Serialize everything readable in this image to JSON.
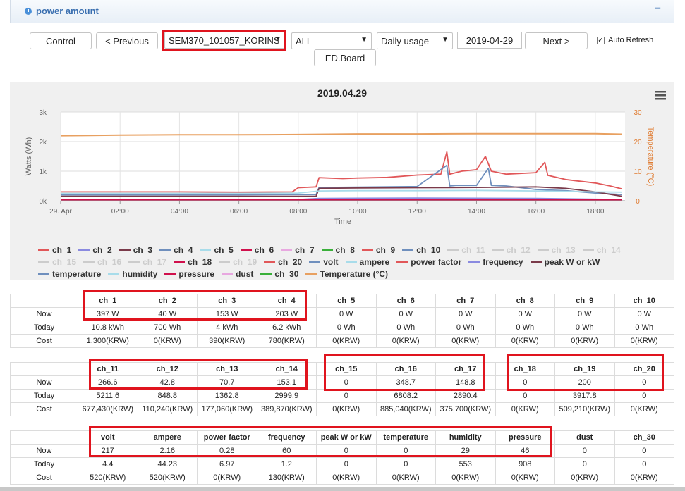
{
  "panel": {
    "title": "power amount",
    "collapse": "−"
  },
  "toolbar": {
    "control": "Control",
    "previous": "< Previous",
    "device": "SEM370_101057_KORINS",
    "channel": "ALL",
    "mode": "Daily usage",
    "date": "2019-04-29",
    "next": "Next >",
    "auto_refresh": "Auto Refresh",
    "edboard": "ED.Board"
  },
  "icons": {
    "menu": "hamburger-menu-icon",
    "check": "checkbox-check-icon",
    "arrow": "dropdown-arrow-icon"
  },
  "colors": {
    "accent": "#3a6fb0",
    "highlight": "#e0141e"
  },
  "chart_data": {
    "type": "line",
    "title": "2019.04.29",
    "xlabel": "Time",
    "ylabel": "Watts (Wh)",
    "y2label": "Temperature (°C)",
    "x_ticks": [
      "29. Apr",
      "02:00",
      "04:00",
      "06:00",
      "08:00",
      "10:00",
      "12:00",
      "14:00",
      "16:00",
      "18:00"
    ],
    "y_ticks": [
      "0k",
      "1k",
      "2k",
      "3k"
    ],
    "y2_ticks": [
      "0",
      "10",
      "20",
      "30"
    ],
    "ylim": [
      0,
      3000
    ],
    "y2lim": [
      0,
      30
    ],
    "xlim_hours": [
      0,
      19
    ],
    "series": [
      {
        "name": "Temperature (°C)",
        "color": "#e8a060",
        "axis": "y2",
        "x": [
          0,
          2,
          4,
          6,
          8,
          10,
          12,
          14,
          16,
          18,
          18.9
        ],
        "y": [
          22.0,
          22.2,
          22.3,
          22.3,
          22.4,
          22.6,
          22.6,
          22.7,
          22.7,
          22.7,
          22.5
        ]
      },
      {
        "name": "ch_1",
        "color": "#e15759",
        "axis": "y1",
        "x": [
          0,
          2,
          4,
          6,
          7.8,
          8.0,
          8.6,
          8.7,
          9.5,
          10,
          11,
          12,
          12.8,
          13.0,
          13.1,
          13.5,
          14,
          14.3,
          14.5,
          15,
          16,
          16.3,
          16.4,
          17,
          18,
          18.5,
          18.9
        ],
        "y": [
          300,
          300,
          300,
          290,
          300,
          440,
          470,
          780,
          750,
          770,
          790,
          870,
          900,
          1650,
          900,
          1000,
          1050,
          1500,
          1000,
          900,
          950,
          1300,
          860,
          720,
          600,
          500,
          400
        ]
      },
      {
        "name": "ch_4",
        "color": "#6f8fbd",
        "axis": "y1",
        "x": [
          0,
          2,
          4,
          6,
          8,
          8.6,
          8.7,
          10,
          12,
          13.0,
          13.1,
          13.3,
          14,
          14.4,
          14.5,
          15,
          16,
          17,
          18,
          18.9
        ],
        "y": [
          200,
          200,
          200,
          200,
          210,
          210,
          450,
          460,
          480,
          1200,
          500,
          520,
          520,
          1100,
          520,
          500,
          380,
          340,
          260,
          210
        ]
      },
      {
        "name": "ch_3",
        "color": "#7a3a4a",
        "axis": "y1",
        "x": [
          0,
          2,
          4,
          6,
          8,
          8.6,
          8.7,
          10,
          12,
          14,
          16,
          17,
          18,
          18.9
        ],
        "y": [
          150,
          150,
          150,
          150,
          150,
          150,
          420,
          430,
          440,
          450,
          470,
          420,
          300,
          150
        ]
      },
      {
        "name": "humidity",
        "color": "#a8dcea",
        "axis": "y1",
        "x": [
          0,
          2,
          4,
          6,
          8,
          8.7,
          10,
          12,
          14,
          16,
          18,
          18.9
        ],
        "y": [
          250,
          250,
          250,
          250,
          260,
          330,
          340,
          340,
          350,
          330,
          300,
          290
        ]
      },
      {
        "name": "ch_2",
        "color": "#8a8ae0",
        "axis": "y1",
        "x": [
          0,
          4,
          8,
          8.7,
          12,
          16,
          18.9
        ],
        "y": [
          40,
          40,
          40,
          80,
          90,
          80,
          40
        ]
      },
      {
        "name": "pressure",
        "color": "#d0104c",
        "axis": "y1",
        "x": [
          0,
          4,
          8,
          12,
          16,
          18.9
        ],
        "y": [
          30,
          30,
          30,
          30,
          30,
          30
        ]
      }
    ]
  },
  "legend": [
    {
      "name": "ch_1",
      "color": "#e15759",
      "dim": false
    },
    {
      "name": "ch_2",
      "color": "#8a8ae0",
      "dim": false
    },
    {
      "name": "ch_3",
      "color": "#7a3a4a",
      "dim": false
    },
    {
      "name": "ch_4",
      "color": "#6f8fbd",
      "dim": false
    },
    {
      "name": "ch_5",
      "color": "#a8dcea",
      "dim": false
    },
    {
      "name": "ch_6",
      "color": "#d0104c",
      "dim": false
    },
    {
      "name": "ch_7",
      "color": "#e8a8e0",
      "dim": false
    },
    {
      "name": "ch_8",
      "color": "#3ab03a",
      "dim": false
    },
    {
      "name": "ch_9",
      "color": "#e15759",
      "dim": false
    },
    {
      "name": "ch_10",
      "color": "#6f8fbd",
      "dim": false
    },
    {
      "name": "ch_11",
      "color": "#cccccc",
      "dim": true
    },
    {
      "name": "ch_12",
      "color": "#cccccc",
      "dim": true
    },
    {
      "name": "ch_13",
      "color": "#cccccc",
      "dim": true
    },
    {
      "name": "ch_14",
      "color": "#cccccc",
      "dim": true
    },
    {
      "name": "ch_15",
      "color": "#cccccc",
      "dim": true
    },
    {
      "name": "ch_16",
      "color": "#cccccc",
      "dim": true
    },
    {
      "name": "ch_17",
      "color": "#cccccc",
      "dim": true
    },
    {
      "name": "ch_18",
      "color": "#d0104c",
      "dim": false
    },
    {
      "name": "ch_19",
      "color": "#cccccc",
      "dim": true
    },
    {
      "name": "ch_20",
      "color": "#e15759",
      "dim": false
    },
    {
      "name": "volt",
      "color": "#6f8fbd",
      "dim": false
    },
    {
      "name": "ampere",
      "color": "#a8dcea",
      "dim": false
    },
    {
      "name": "power factor",
      "color": "#e15759",
      "dim": false
    },
    {
      "name": "frequency",
      "color": "#8a8ae0",
      "dim": false
    },
    {
      "name": "peak W or kW",
      "color": "#7a3a4a",
      "dim": false
    },
    {
      "name": "temperature",
      "color": "#6f8fbd",
      "dim": false
    },
    {
      "name": "humidity",
      "color": "#a8dcea",
      "dim": false
    },
    {
      "name": "pressure",
      "color": "#d0104c",
      "dim": false
    },
    {
      "name": "dust",
      "color": "#e8a8e0",
      "dim": false
    },
    {
      "name": "ch_30",
      "color": "#3ab03a",
      "dim": false
    },
    {
      "name": "Temperature (°C)",
      "color": "#e8a060",
      "dim": false
    }
  ],
  "tables": [
    {
      "headers": [
        "ch_1",
        "ch_2",
        "ch_3",
        "ch_4",
        "ch_5",
        "ch_6",
        "ch_7",
        "ch_8",
        "ch_9",
        "ch_10"
      ],
      "rows": [
        {
          "label": "Now",
          "values": [
            "397 W",
            "40 W",
            "153 W",
            "203 W",
            "0 W",
            "0 W",
            "0 W",
            "0 W",
            "0 W",
            "0 W"
          ]
        },
        {
          "label": "Today",
          "values": [
            "10.8 kWh",
            "700 Wh",
            "4 kWh",
            "6.2 kWh",
            "0 Wh",
            "0 Wh",
            "0 Wh",
            "0 Wh",
            "0 Wh",
            "0 Wh"
          ]
        },
        {
          "label": "Cost",
          "values": [
            "1,300(KRW)",
            "0(KRW)",
            "390(KRW)",
            "780(KRW)",
            "0(KRW)",
            "0(KRW)",
            "0(KRW)",
            "0(KRW)",
            "0(KRW)",
            "0(KRW)"
          ]
        }
      ]
    },
    {
      "headers": [
        "ch_11",
        "ch_12",
        "ch_13",
        "ch_14",
        "ch_15",
        "ch_16",
        "ch_17",
        "ch_18",
        "ch_19",
        "ch_20"
      ],
      "rows": [
        {
          "label": "Now",
          "values": [
            "266.6",
            "42.8",
            "70.7",
            "153.1",
            "0",
            "348.7",
            "148.8",
            "0",
            "200",
            "0"
          ]
        },
        {
          "label": "Today",
          "values": [
            "5211.6",
            "848.8",
            "1362.8",
            "2999.9",
            "0",
            "6808.2",
            "2890.4",
            "0",
            "3917.8",
            "0"
          ]
        },
        {
          "label": "Cost",
          "values": [
            "677,430(KRW)",
            "110,240(KRW)",
            "177,060(KRW)",
            "389,870(KRW)",
            "0(KRW)",
            "885,040(KRW)",
            "375,700(KRW)",
            "0(KRW)",
            "509,210(KRW)",
            "0(KRW)"
          ]
        }
      ]
    },
    {
      "headers": [
        "volt",
        "ampere",
        "power factor",
        "frequency",
        "peak W or kW",
        "temperature",
        "humidity",
        "pressure",
        "dust",
        "ch_30"
      ],
      "rows": [
        {
          "label": "Now",
          "values": [
            "217",
            "2.16",
            "0.28",
            "60",
            "0",
            "0",
            "29",
            "46",
            "0",
            "0"
          ]
        },
        {
          "label": "Today",
          "values": [
            "4.4",
            "44.23",
            "6.97",
            "1.2",
            "0",
            "0",
            "553",
            "908",
            "0",
            "0"
          ]
        },
        {
          "label": "Cost",
          "values": [
            "520(KRW)",
            "520(KRW)",
            "0(KRW)",
            "130(KRW)",
            "0(KRW)",
            "0(KRW)",
            "0(KRW)",
            "0(KRW)",
            "0(KRW)",
            "0(KRW)"
          ]
        }
      ]
    }
  ]
}
